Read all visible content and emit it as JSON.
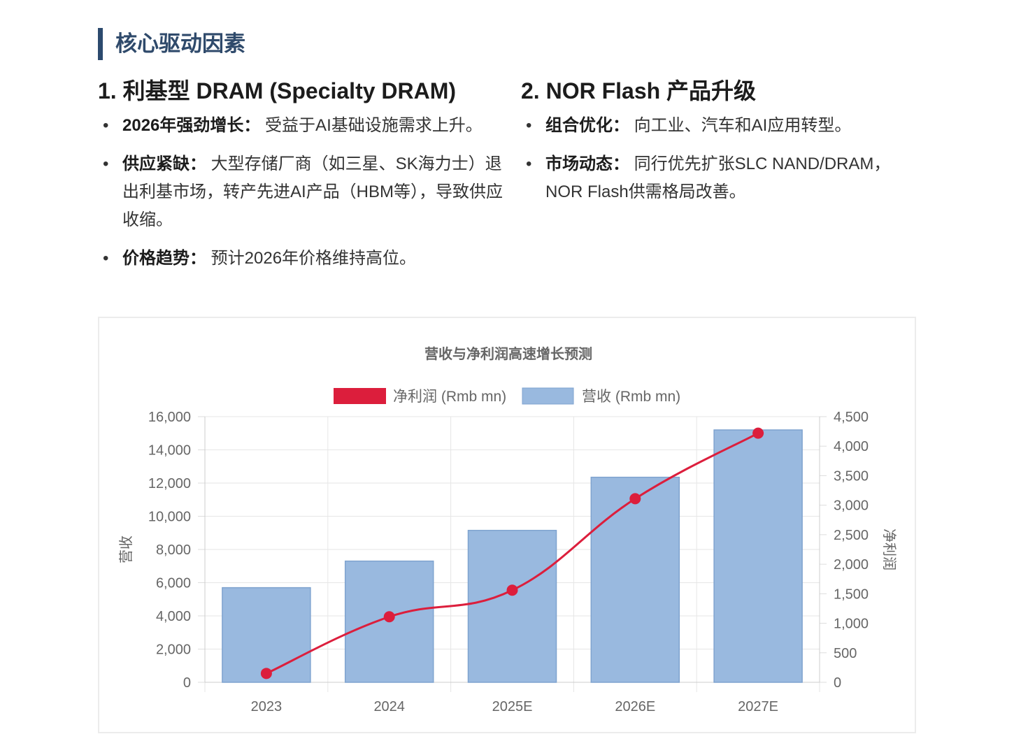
{
  "section_title": "核心驱动因素",
  "left": {
    "heading": "1. 利基型 DRAM (Specialty DRAM)",
    "bullets": [
      {
        "label": "2026年强劲增长：",
        "text": " 受益于AI基础设施需求上升。"
      },
      {
        "label": "供应紧缺：",
        "text": " 大型存储厂商（如三星、SK海力士）退出利基市场，转产先进AI产品（HBM等），导致供应收缩。"
      },
      {
        "label": "价格趋势：",
        "text": " 预计2026年价格维持高位。"
      }
    ]
  },
  "right": {
    "heading": "2. NOR Flash 产品升级",
    "bullets": [
      {
        "label": "组合优化：",
        "text": " 向工业、汽车和AI应用转型。"
      },
      {
        "label": "市场动态：",
        "text": " 同行优先扩张SLC NAND/DRAM，NOR Flash供需格局改善。"
      }
    ]
  },
  "chart_data": {
    "type": "bar+line",
    "title": "营收与净利润高速增长预测",
    "categories": [
      "2023",
      "2024",
      "2025E",
      "2026E",
      "2027E"
    ],
    "series": [
      {
        "name": "净利润 (Rmb mn)",
        "type": "line",
        "axis": "right",
        "color": "#dc1e3c",
        "values": [
          150,
          1110,
          1560,
          3110,
          4220
        ]
      },
      {
        "name": "营收 (Rmb mn)",
        "type": "bar",
        "axis": "left",
        "color": "#99b9df",
        "values": [
          5700,
          7300,
          9150,
          12350,
          15200
        ]
      }
    ],
    "ylabel": "营收",
    "y2label": "净利润",
    "ylim": [
      0,
      16000
    ],
    "y2lim": [
      0,
      4500
    ],
    "yticks": [
      "0",
      "2,000",
      "4,000",
      "6,000",
      "8,000",
      "10,000",
      "12,000",
      "14,000",
      "16,000"
    ],
    "y2ticks": [
      "0",
      "500",
      "1,000",
      "1,500",
      "2,000",
      "2,500",
      "3,000",
      "3,500",
      "4,000",
      "4,500"
    ],
    "legend": "top",
    "grid": true
  }
}
